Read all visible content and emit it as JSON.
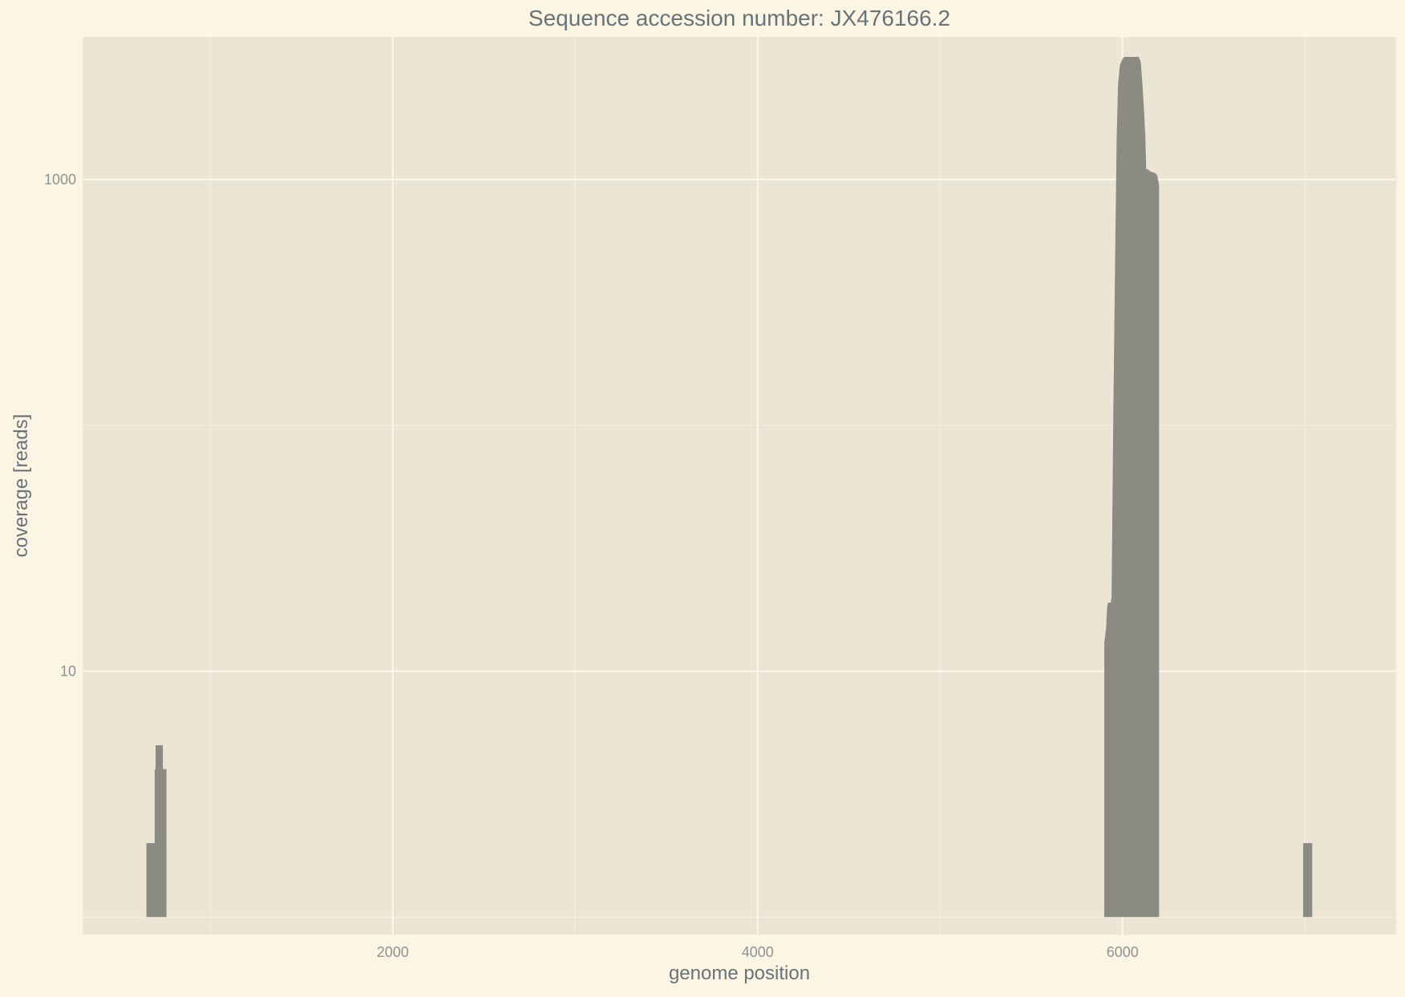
{
  "chart_data": {
    "type": "area",
    "title": "Sequence accession number: JX476166.2",
    "xlabel": "genome position",
    "ylabel": "coverage [reads]",
    "y_scale": "log",
    "xlim": [
      300,
      7500
    ],
    "ylim": [
      0.85,
      3800
    ],
    "x_ticks": [
      2000,
      4000,
      6000
    ],
    "x_tick_labels": [
      "2000",
      "4000",
      "6000"
    ],
    "y_ticks": [
      10,
      1000
    ],
    "y_tick_labels": [
      "10",
      "1000"
    ],
    "grid": true,
    "legend": "none",
    "colors": {
      "page_background": "#fcf5e4",
      "plot_background": "#ece5d3",
      "grid": "#fbf8f0",
      "fill": "#8c8b83"
    },
    "series": [
      {
        "segments": [
          [
            [
              650,
              1
            ],
            [
              650,
              2
            ],
            [
              695,
              2
            ],
            [
              695,
              4
            ],
            [
              700,
              4
            ],
            [
              700,
              5
            ],
            [
              740,
              5
            ],
            [
              740,
              4
            ],
            [
              760,
              4
            ],
            [
              760,
              1
            ]
          ],
          [
            [
              5900,
              1
            ],
            [
              5900,
              13
            ],
            [
              5910,
              15
            ],
            [
              5915,
              18
            ],
            [
              5920,
              19
            ],
            [
              5935,
              19
            ],
            [
              5940,
              20
            ],
            [
              5950,
              120
            ],
            [
              5960,
              500
            ],
            [
              5968,
              1500
            ],
            [
              5975,
              2400
            ],
            [
              5985,
              2900
            ],
            [
              6000,
              3100
            ],
            [
              6010,
              3150
            ],
            [
              6090,
              3150
            ],
            [
              6100,
              3000
            ],
            [
              6110,
              2400
            ],
            [
              6120,
              1800
            ],
            [
              6125,
              1500
            ],
            [
              6130,
              1100
            ],
            [
              6140,
              1100
            ],
            [
              6150,
              1080
            ],
            [
              6180,
              1060
            ],
            [
              6190,
              1040
            ],
            [
              6200,
              950
            ],
            [
              6200,
              35
            ],
            [
              6200,
              1
            ]
          ],
          [
            [
              6990,
              1
            ],
            [
              6990,
              2
            ],
            [
              7040,
              2
            ],
            [
              7040,
              1
            ]
          ]
        ]
      }
    ]
  }
}
